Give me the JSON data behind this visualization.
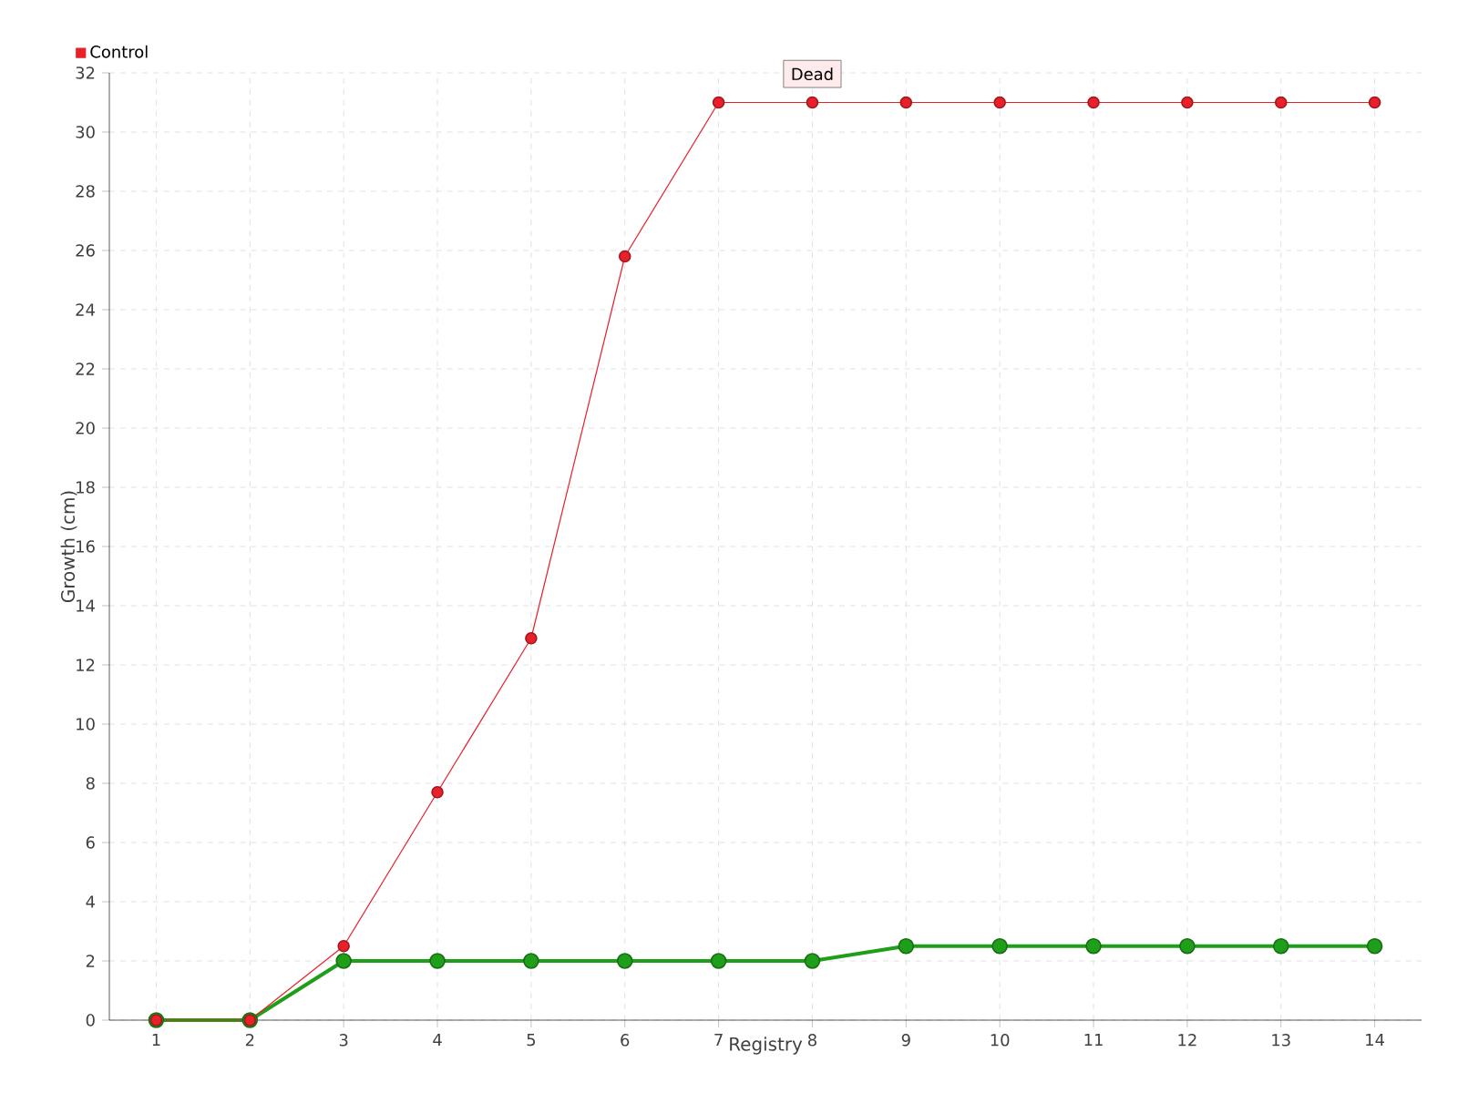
{
  "chart_data": {
    "type": "line",
    "xlabel": "Registry",
    "ylabel": "Growth (cm)",
    "categories": [
      "1",
      "2",
      "3",
      "4",
      "5",
      "6",
      "7",
      "8",
      "9",
      "10",
      "11",
      "12",
      "13",
      "14"
    ],
    "series": [
      {
        "color": "#1f9e1a",
        "values": [
          0,
          0,
          2,
          2,
          2,
          2,
          2,
          2,
          2.5,
          2.5,
          2.5,
          2.5,
          2.5,
          2.5
        ]
      },
      {
        "name": "Control",
        "color": "#e8202a",
        "values": [
          0,
          0,
          2.5,
          7.7,
          12.9,
          25.8,
          31,
          31,
          31,
          31,
          31,
          31,
          31,
          31
        ]
      }
    ],
    "ylim": [
      0,
      32
    ],
    "yticks": [
      0,
      2,
      4,
      6,
      8,
      10,
      12,
      14,
      16,
      18,
      20,
      22,
      24,
      26,
      28,
      30,
      32
    ],
    "grid": true,
    "legend": "top left",
    "marker": "circle",
    "line_style": "solid",
    "annotations": [
      {
        "text": "Dead",
        "x": "8",
        "y": 31
      }
    ]
  }
}
